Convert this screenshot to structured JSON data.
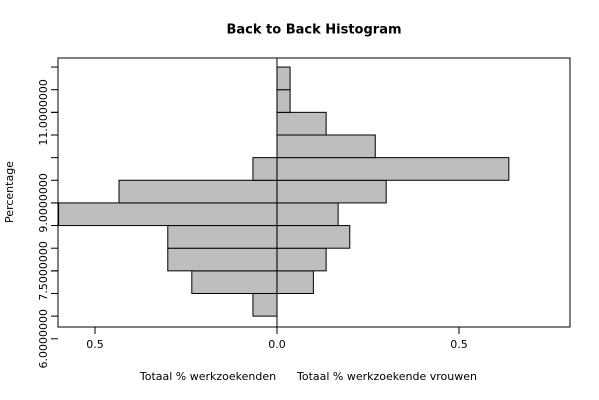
{
  "chart_data": {
    "type": "back_to_back_histogram",
    "title": "Back to Back Histogram",
    "y_label": "Percentage",
    "bins": [
      6.5,
      7.0,
      7.5,
      8.0,
      8.5,
      9.0,
      9.5,
      10.0,
      10.5,
      11.0,
      11.5,
      12.0
    ],
    "series": [
      {
        "name": "Totaal % werkzoekenden",
        "color": "#bebebe",
        "values": [
          0.066,
          0.234,
          0.3,
          0.3,
          0.6,
          0.434,
          0.066,
          0,
          0,
          0,
          0
        ]
      },
      {
        "name": "Totaal % werkzoekende vrouwen",
        "color": "#bebebe",
        "values": [
          0,
          0.1,
          0.135,
          0.2,
          0.168,
          0.3,
          0.637,
          0.27,
          0.135,
          0.036,
          0.036
        ]
      }
    ],
    "xlim": [
      -0.6016,
      0.805
    ],
    "xticks": [
      {
        "value": -0.5,
        "label": "0.5"
      },
      {
        "value": 0,
        "label": "0.0"
      },
      0.5
    ],
    "ylim": [
      6.26,
      12.2
    ],
    "yticks": [
      {
        "value": 6,
        "label": "6.0000000"
      },
      {
        "value": 7.5,
        "label": "7.5000000"
      },
      {
        "value": 9,
        "label": "9.0000000"
      },
      {
        "value": 11,
        "label": "11.0000000"
      }
    ]
  }
}
